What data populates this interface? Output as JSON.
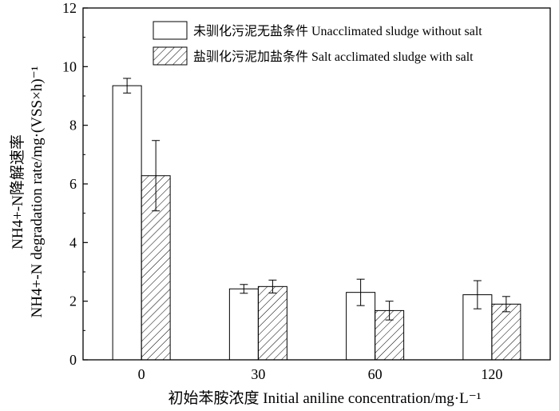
{
  "chart_data": {
    "type": "bar",
    "categories": [
      "0",
      "30",
      "60",
      "120"
    ],
    "series": [
      {
        "name": "未驯化污泥无盐条件 Unacclimated sludge without salt",
        "values": [
          9.35,
          2.42,
          2.3,
          2.22
        ],
        "errors": [
          0.25,
          0.15,
          0.45,
          0.48
        ],
        "fill": "none"
      },
      {
        "name": "盐驯化污泥加盐条件 Salt acclimated sludge with salt",
        "values": [
          6.28,
          2.5,
          1.68,
          1.9
        ],
        "errors": [
          1.2,
          0.22,
          0.32,
          0.26
        ],
        "fill": "hatch"
      }
    ],
    "ylim": [
      0,
      12
    ],
    "yticks": [
      "0",
      "2",
      "4",
      "6",
      "8",
      "10",
      "12"
    ],
    "ylabel_line1": "NH4+-N降解速率",
    "ylabel_line2": "NH4+-N degradation rate/mg·(VSS×h)⁻¹",
    "xlabel": "初始苯胺浓度 Initial aniline concentration/mg·L⁻¹",
    "legend_position": "top-right",
    "colors": {
      "stroke": "#000000",
      "background": "#ffffff"
    }
  }
}
